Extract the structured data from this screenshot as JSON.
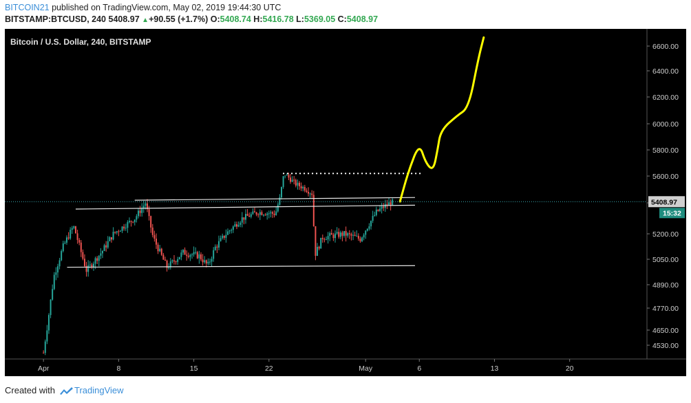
{
  "header": {
    "author": "BITCOIN21",
    "published_text": "published on TradingView.com, May 02, 2019 19:44:30 UTC",
    "symbol": "BITSTAMP:BTCUSD, 240",
    "last": "5408.97",
    "change": "+90.55 (+1.7%)",
    "o_label": "O:",
    "o": "5408.74",
    "h_label": "H:",
    "h": "5416.78",
    "l_label": "L:",
    "l": "5369.05",
    "c_label": "C:",
    "c": "5408.97"
  },
  "footer": {
    "created_with": "Created with",
    "brand": "TradingView"
  },
  "colors": {
    "up": "#26a69a",
    "down": "#ef5350",
    "projection": "#ffff00",
    "price_badge": "#d0d0d0",
    "timer_badge": "#1e8c7e"
  },
  "chart_data": {
    "type": "candlestick",
    "title": "Bitcoin / U.S. Dollar, 240, BITSTAMP",
    "y_ticks": [
      "6600.00",
      "6400.00",
      "6200.00",
      "6000.00",
      "5800.00",
      "5600.00",
      "5400.00",
      "5200.00",
      "5050.00",
      "4890.00",
      "4770.00",
      "4650.00",
      "4530.00"
    ],
    "y_tick_values": [
      6600,
      6400,
      6200,
      6000,
      5800,
      5600,
      5400,
      5200,
      5050,
      4890,
      4770,
      4650,
      4530
    ],
    "x_ticks": [
      "Apr",
      "8",
      "15",
      "22",
      "May",
      "6",
      "13",
      "20"
    ],
    "x_tick_days": [
      1,
      8,
      15,
      22,
      31,
      36,
      43,
      50
    ],
    "x_range_days": [
      -2.6,
      57.2
    ],
    "last_price_label": "5408.97",
    "last_price": 5408.97,
    "timer_label": "15:32",
    "trend_path": [
      [
        1,
        4470
      ],
      [
        1.3,
        4650
      ],
      [
        2,
        4950
      ],
      [
        2.8,
        5120
      ],
      [
        3.8,
        5250
      ],
      [
        5,
        4980
      ],
      [
        6.5,
        5100
      ],
      [
        7.5,
        5200
      ],
      [
        9.5,
        5300
      ],
      [
        10.5,
        5400
      ],
      [
        11.2,
        5180
      ],
      [
        12.5,
        5000
      ],
      [
        14,
        5090
      ],
      [
        15.5,
        5070
      ],
      [
        16.3,
        5010
      ],
      [
        17,
        5120
      ],
      [
        18,
        5200
      ],
      [
        19.5,
        5300
      ],
      [
        21,
        5340
      ],
      [
        22.6,
        5330
      ],
      [
        23,
        5430
      ],
      [
        23.4,
        5620
      ],
      [
        24.5,
        5540
      ],
      [
        25.3,
        5510
      ],
      [
        26,
        5470
      ],
      [
        26.3,
        5080
      ],
      [
        27,
        5180
      ],
      [
        29,
        5200
      ],
      [
        30.5,
        5170
      ],
      [
        32,
        5340
      ],
      [
        33,
        5390
      ],
      [
        33.6,
        5410
      ]
    ],
    "lines": {
      "upper_white": [
        [
          9.5,
          5420
        ],
        [
          35.6,
          5440
        ]
      ],
      "mid_white": [
        [
          4,
          5360
        ],
        [
          35.6,
          5385
        ]
      ],
      "lower_white": [
        [
          3.2,
          5000
        ],
        [
          35.6,
          5010
        ]
      ],
      "dotted_resistance": [
        [
          23.3,
          5620
        ],
        [
          36.3,
          5620
        ]
      ],
      "projection": [
        [
          34.2,
          5410
        ],
        [
          35,
          5640
        ],
        [
          36,
          5850
        ],
        [
          36.6,
          5700
        ],
        [
          37.3,
          5640
        ],
        [
          37.7,
          5800
        ],
        [
          38,
          5950
        ],
        [
          39.5,
          6060
        ],
        [
          40.6,
          6120
        ],
        [
          41.5,
          6500
        ],
        [
          42,
          6670
        ]
      ]
    }
  }
}
